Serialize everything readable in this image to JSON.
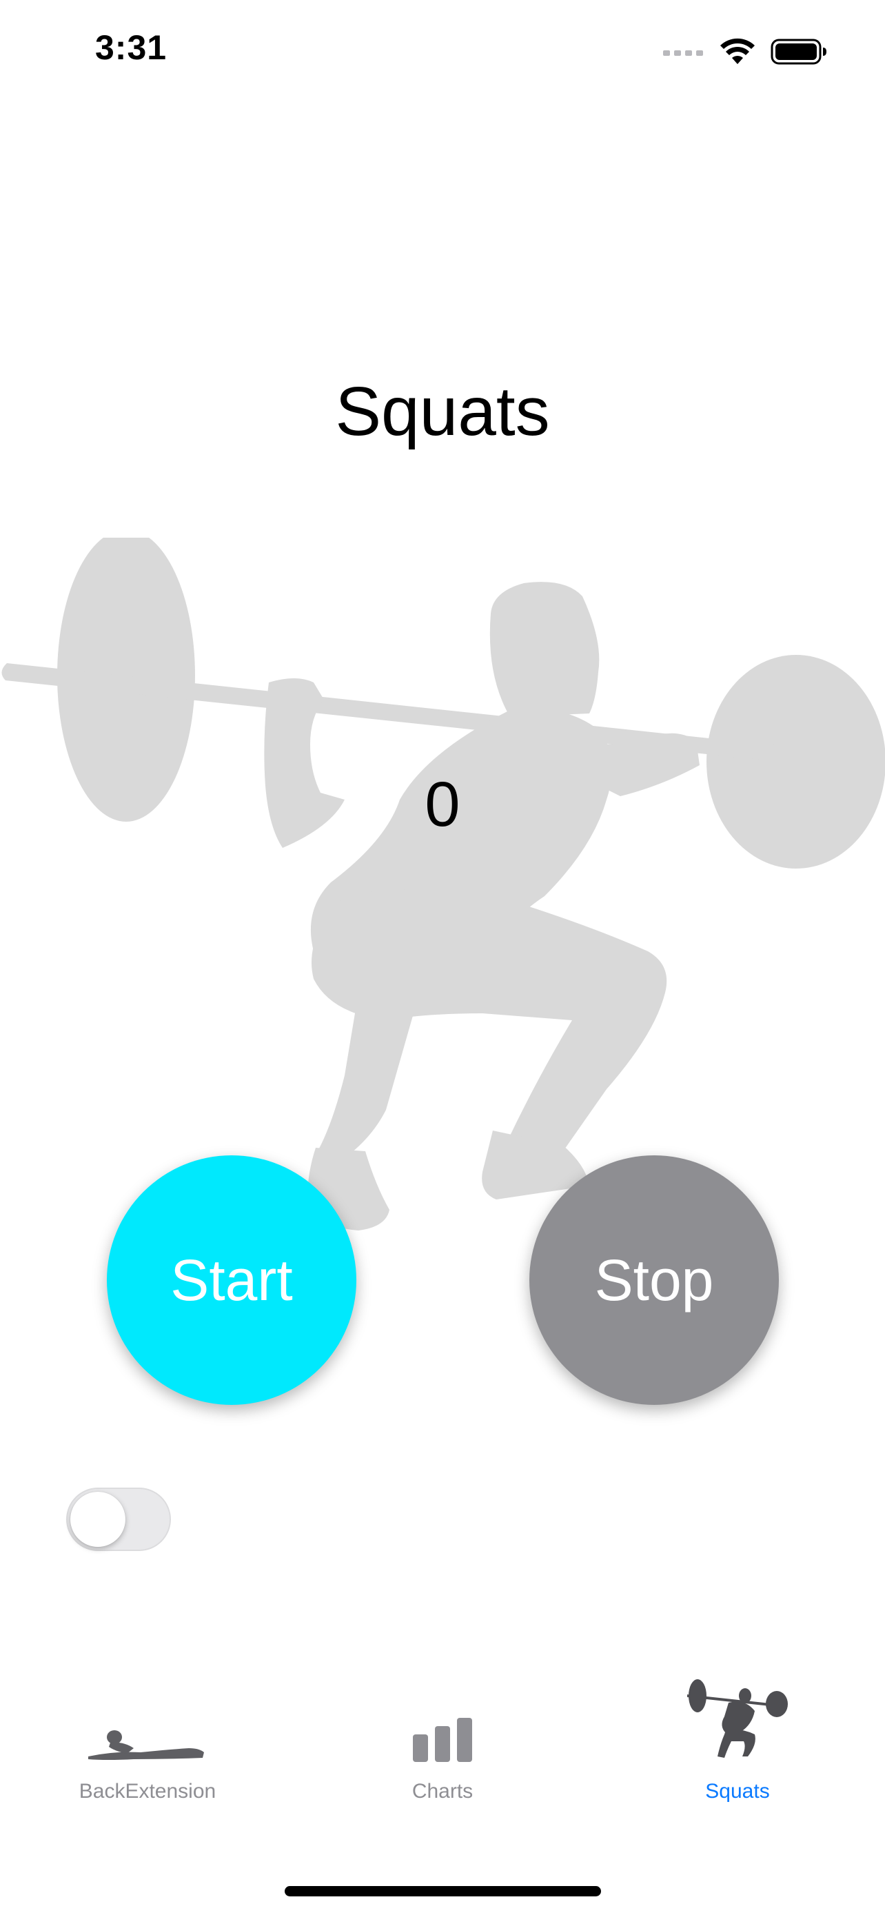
{
  "status_bar": {
    "time": "3:31",
    "icons": [
      "cellular-signal-icon",
      "wifi-icon",
      "battery-icon"
    ]
  },
  "page": {
    "title": "Squats",
    "rep_count": "0",
    "illustration": "squat-silhouette"
  },
  "controls": {
    "start_label": "Start",
    "stop_label": "Stop",
    "start_color": "#00e9fd",
    "stop_color": "#8e8e92",
    "toggle_on": false
  },
  "tab_bar": {
    "active_color": "#0a7aff",
    "inactive_color": "#8e8e93",
    "items": [
      {
        "label": "BackExtension",
        "icon": "back-extension-icon",
        "active": false
      },
      {
        "label": "Charts",
        "icon": "bar-chart-icon",
        "active": false
      },
      {
        "label": "Squats",
        "icon": "squat-icon",
        "active": true
      }
    ]
  }
}
